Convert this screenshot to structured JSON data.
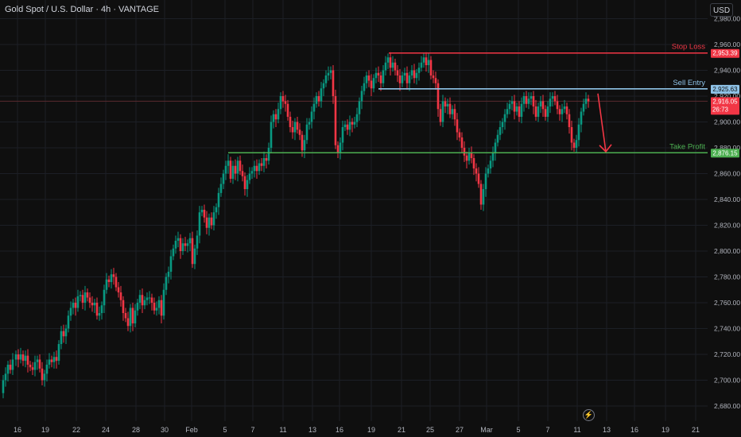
{
  "title": "Gold Spot / U.S. Dollar · 4h · VANTAGE",
  "currency_button": "USD",
  "icons": {
    "bolt": "lightning-icon"
  },
  "chart_data": {
    "type": "candlestick",
    "x_ticks": [
      "16",
      "19",
      "22",
      "24",
      "28",
      "30",
      "Feb",
      "5",
      "7",
      "11",
      "13",
      "16",
      "19",
      "21",
      "25",
      "27",
      "Mar",
      "5",
      "7",
      "11",
      "13",
      "16",
      "19",
      "21"
    ],
    "y_ticks": [
      2680,
      2700,
      2720,
      2740,
      2760,
      2780,
      2800,
      2820,
      2840,
      2860,
      2880,
      2900,
      2920,
      2940,
      2960,
      2980
    ],
    "ylim": [
      2674,
      2986
    ],
    "levels": [
      {
        "label": "Stop Loss",
        "value": 2953.39,
        "value_label": "2,953.39",
        "color": "#f23645"
      },
      {
        "label": "Sell Entry",
        "value": 2925.63,
        "value_label": "2,925.63",
        "color": "#8fc3e8"
      },
      {
        "label": "Take Profit",
        "value": 2876.15,
        "value_label": "2,876.15",
        "color": "#4caf50"
      }
    ],
    "current_price": {
      "value": 2916.05,
      "value_label": "2,916.05",
      "countdown": "26:73",
      "color": "#f23645"
    },
    "colors": {
      "up": "#089981",
      "down": "#f23645",
      "grid": "#1c1f26",
      "background": "#0f0f0f"
    },
    "close_path": [
      [
        0,
        2690
      ],
      [
        4,
        2700
      ],
      [
        7,
        2705
      ],
      [
        10,
        2712
      ],
      [
        13,
        2708
      ],
      [
        16,
        2716
      ],
      [
        20,
        2720
      ],
      [
        23,
        2716
      ],
      [
        26,
        2720
      ],
      [
        29,
        2715
      ],
      [
        32,
        2719
      ],
      [
        35,
        2712
      ],
      [
        38,
        2710
      ],
      [
        41,
        2708
      ],
      [
        44,
        2714
      ],
      [
        47,
        2716
      ],
      [
        50,
        2709
      ],
      [
        53,
        2700
      ],
      [
        56,
        2705
      ],
      [
        59,
        2712
      ],
      [
        62,
        2716
      ],
      [
        65,
        2714
      ],
      [
        68,
        2718
      ],
      [
        71,
        2715
      ],
      [
        74,
        2728
      ],
      [
        77,
        2738
      ],
      [
        80,
        2734
      ],
      [
        83,
        2740
      ],
      [
        86,
        2750
      ],
      [
        89,
        2756
      ],
      [
        92,
        2760
      ],
      [
        95,
        2756
      ],
      [
        98,
        2765
      ],
      [
        101,
        2766
      ],
      [
        104,
        2760
      ],
      [
        107,
        2768
      ],
      [
        110,
        2764
      ],
      [
        113,
        2760
      ],
      [
        116,
        2758
      ],
      [
        119,
        2760
      ],
      [
        122,
        2750
      ],
      [
        125,
        2752
      ],
      [
        128,
        2758
      ],
      [
        131,
        2770
      ],
      [
        134,
        2778
      ],
      [
        137,
        2776
      ],
      [
        140,
        2782
      ],
      [
        143,
        2780
      ],
      [
        146,
        2772
      ],
      [
        149,
        2768
      ],
      [
        152,
        2762
      ],
      [
        155,
        2752
      ],
      [
        158,
        2748
      ],
      [
        161,
        2742
      ],
      [
        164,
        2756
      ],
      [
        167,
        2744
      ],
      [
        170,
        2754
      ],
      [
        173,
        2760
      ],
      [
        176,
        2766
      ],
      [
        179,
        2758
      ],
      [
        182,
        2762
      ],
      [
        185,
        2764
      ],
      [
        188,
        2764
      ],
      [
        191,
        2760
      ],
      [
        194,
        2754
      ],
      [
        197,
        2756
      ],
      [
        200,
        2762
      ],
      [
        203,
        2750
      ],
      [
        206,
        2770
      ],
      [
        209,
        2780
      ],
      [
        212,
        2784
      ],
      [
        215,
        2796
      ],
      [
        218,
        2802
      ],
      [
        221,
        2808
      ],
      [
        224,
        2810
      ],
      [
        227,
        2800
      ],
      [
        230,
        2806
      ],
      [
        233,
        2804
      ],
      [
        236,
        2806
      ],
      [
        239,
        2810
      ],
      [
        242,
        2790
      ],
      [
        245,
        2802
      ],
      [
        248,
        2812
      ],
      [
        251,
        2830
      ],
      [
        254,
        2832
      ],
      [
        257,
        2826
      ],
      [
        260,
        2818
      ],
      [
        263,
        2826
      ],
      [
        266,
        2820
      ],
      [
        269,
        2830
      ],
      [
        272,
        2834
      ],
      [
        275,
        2845
      ],
      [
        278,
        2852
      ],
      [
        281,
        2860
      ],
      [
        284,
        2866
      ],
      [
        287,
        2870
      ],
      [
        290,
        2856
      ],
      [
        293,
        2866
      ],
      [
        296,
        2860
      ],
      [
        299,
        2870
      ],
      [
        302,
        2862
      ],
      [
        305,
        2858
      ],
      [
        308,
        2848
      ],
      [
        311,
        2855
      ],
      [
        314,
        2860
      ],
      [
        317,
        2862
      ],
      [
        320,
        2866
      ],
      [
        323,
        2862
      ],
      [
        326,
        2868
      ],
      [
        329,
        2866
      ],
      [
        332,
        2872
      ],
      [
        335,
        2870
      ],
      [
        338,
        2880
      ],
      [
        341,
        2900
      ],
      [
        344,
        2906
      ],
      [
        347,
        2902
      ],
      [
        350,
        2910
      ],
      [
        353,
        2920
      ],
      [
        356,
        2916
      ],
      [
        359,
        2914
      ],
      [
        362,
        2904
      ],
      [
        365,
        2896
      ],
      [
        368,
        2892
      ],
      [
        371,
        2900
      ],
      [
        374,
        2894
      ],
      [
        377,
        2890
      ],
      [
        380,
        2878
      ],
      [
        383,
        2886
      ],
      [
        386,
        2898
      ],
      [
        389,
        2900
      ],
      [
        392,
        2908
      ],
      [
        395,
        2914
      ],
      [
        398,
        2920
      ],
      [
        401,
        2916
      ],
      [
        404,
        2926
      ],
      [
        407,
        2930
      ],
      [
        410,
        2936
      ],
      [
        413,
        2938
      ],
      [
        416,
        2940
      ],
      [
        419,
        2920
      ],
      [
        422,
        2882
      ],
      [
        425,
        2876
      ],
      [
        428,
        2884
      ],
      [
        431,
        2896
      ],
      [
        434,
        2898
      ],
      [
        437,
        2894
      ],
      [
        440,
        2900
      ],
      [
        443,
        2898
      ],
      [
        446,
        2900
      ],
      [
        449,
        2906
      ],
      [
        452,
        2916
      ],
      [
        455,
        2924
      ],
      [
        458,
        2930
      ],
      [
        461,
        2936
      ],
      [
        464,
        2932
      ],
      [
        467,
        2926
      ],
      [
        470,
        2934
      ],
      [
        473,
        2938
      ],
      [
        476,
        2936
      ],
      [
        479,
        2930
      ],
      [
        482,
        2940
      ],
      [
        485,
        2946
      ],
      [
        488,
        2950
      ],
      [
        491,
        2942
      ],
      [
        494,
        2946
      ],
      [
        497,
        2940
      ],
      [
        500,
        2936
      ],
      [
        503,
        2930
      ],
      [
        506,
        2936
      ],
      [
        509,
        2938
      ],
      [
        512,
        2930
      ],
      [
        515,
        2936
      ],
      [
        518,
        2940
      ],
      [
        521,
        2934
      ],
      [
        524,
        2938
      ],
      [
        527,
        2942
      ],
      [
        530,
        2946
      ],
      [
        533,
        2950
      ],
      [
        536,
        2944
      ],
      [
        539,
        2948
      ],
      [
        542,
        2936
      ],
      [
        545,
        2934
      ],
      [
        548,
        2930
      ],
      [
        551,
        2910
      ],
      [
        554,
        2900
      ],
      [
        557,
        2916
      ],
      [
        560,
        2912
      ],
      [
        563,
        2914
      ],
      [
        566,
        2906
      ],
      [
        569,
        2910
      ],
      [
        572,
        2902
      ],
      [
        575,
        2892
      ],
      [
        578,
        2888
      ],
      [
        581,
        2880
      ],
      [
        584,
        2874
      ],
      [
        587,
        2870
      ],
      [
        590,
        2876
      ],
      [
        593,
        2872
      ],
      [
        596,
        2864
      ],
      [
        599,
        2860
      ],
      [
        602,
        2852
      ],
      [
        605,
        2836
      ],
      [
        608,
        2848
      ],
      [
        611,
        2860
      ],
      [
        614,
        2864
      ],
      [
        617,
        2870
      ],
      [
        620,
        2876
      ],
      [
        623,
        2884
      ],
      [
        626,
        2890
      ],
      [
        629,
        2896
      ],
      [
        632,
        2900
      ],
      [
        635,
        2906
      ],
      [
        638,
        2910
      ],
      [
        641,
        2914
      ],
      [
        644,
        2916
      ],
      [
        647,
        2908
      ],
      [
        650,
        2912
      ],
      [
        653,
        2904
      ],
      [
        656,
        2914
      ],
      [
        659,
        2920
      ],
      [
        662,
        2914
      ],
      [
        665,
        2918
      ],
      [
        668,
        2920
      ],
      [
        671,
        2912
      ],
      [
        674,
        2904
      ],
      [
        677,
        2912
      ],
      [
        680,
        2916
      ],
      [
        683,
        2910
      ],
      [
        686,
        2904
      ],
      [
        689,
        2912
      ],
      [
        692,
        2918
      ],
      [
        695,
        2920
      ],
      [
        698,
        2916
      ],
      [
        701,
        2910
      ],
      [
        704,
        2906
      ],
      [
        707,
        2910
      ],
      [
        710,
        2912
      ],
      [
        713,
        2906
      ],
      [
        716,
        2896
      ],
      [
        719,
        2884
      ],
      [
        722,
        2880
      ],
      [
        725,
        2886
      ],
      [
        728,
        2898
      ],
      [
        731,
        2908
      ],
      [
        734,
        2914
      ],
      [
        737,
        2918
      ],
      [
        740,
        2916
      ]
    ],
    "arrow": {
      "from_x": 752,
      "from_value": 2922,
      "to_x": 762,
      "to_value": 2877,
      "color": "#f23645"
    }
  }
}
